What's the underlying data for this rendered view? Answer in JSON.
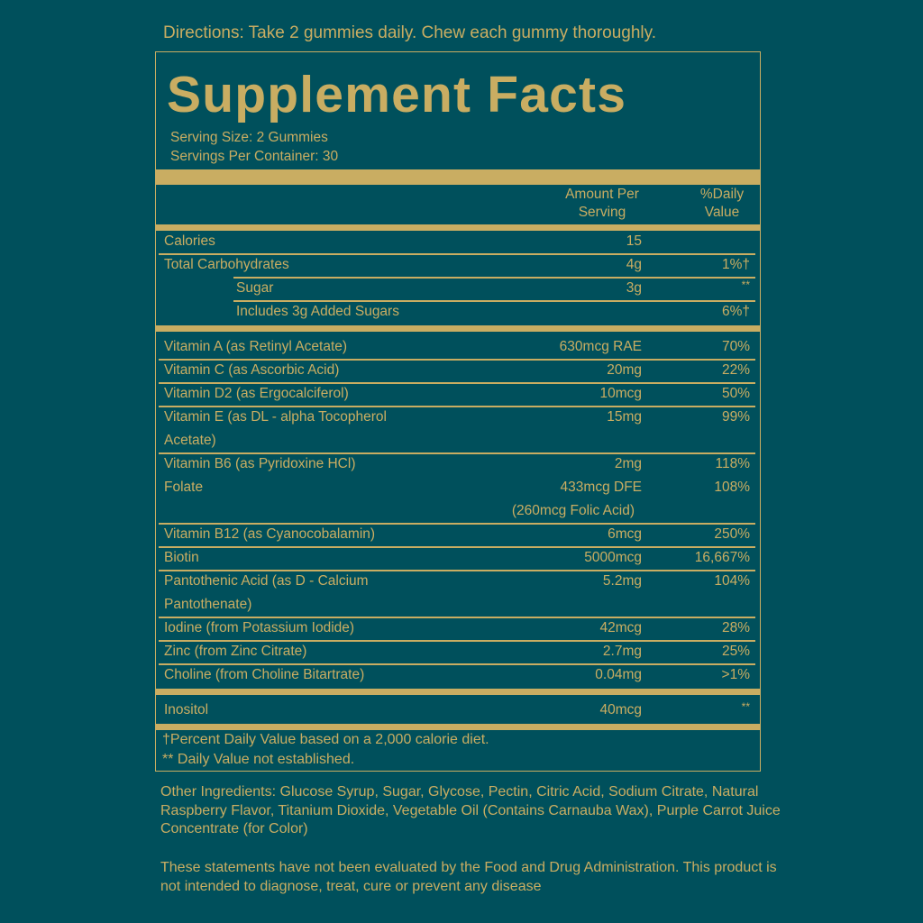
{
  "directions": "Directions: Take 2 gummies daily. Chew each gummy thoroughly.",
  "title": "Supplement Facts",
  "serving_size": "Serving Size: 2 Gummies",
  "servings_per_container": "Servings Per Container: 30",
  "header": {
    "amount": "Amount Per Serving",
    "amount_l1": "Amount Per",
    "amount_l2": "Serving",
    "dv_l1": "%Daily",
    "dv_l2": "Value"
  },
  "rows": [
    {
      "name": [
        "Calories"
      ],
      "amount": [
        "15"
      ],
      "dv": "",
      "after": "thin"
    },
    {
      "name": [
        "Total Carbohydrates"
      ],
      "amount": [
        "4g"
      ],
      "dv": "1%†",
      "after": "thin-indent"
    },
    {
      "name": [
        "Sugar"
      ],
      "indent": true,
      "amount": [
        "3g"
      ],
      "dv": "**",
      "after": "thin-indent"
    },
    {
      "name": [
        "Includes 3g Added Sugars"
      ],
      "indent": true,
      "amount": [
        ""
      ],
      "dv": "6%†",
      "after": "thick"
    },
    {
      "name": [
        "Vitamin A (as Retinyl Acetate)"
      ],
      "amount": [
        "630mcg RAE"
      ],
      "dv": "70%",
      "after": "thin"
    },
    {
      "name": [
        "Vitamin C (as Ascorbic Acid)"
      ],
      "amount": [
        "20mg"
      ],
      "dv": "22%",
      "after": "thin"
    },
    {
      "name": [
        "Vitamin D2 (as Ergocalciferol)"
      ],
      "amount": [
        "10mcg"
      ],
      "dv": "50%",
      "after": "thin"
    },
    {
      "name": [
        "Vitamin E (as DL - alpha Tocopherol",
        "Acetate)"
      ],
      "amount": [
        "15mg"
      ],
      "dv": "99%",
      "after": "thin"
    },
    {
      "name": [
        "Vitamin B6 (as Pyridoxine HCl)"
      ],
      "amount": [
        "2mg"
      ],
      "dv": "118%",
      "after": "none"
    },
    {
      "name": [
        "Folate"
      ],
      "amount": [
        "433mcg DFE",
        "(260mcg Folic Acid)"
      ],
      "dv": "108%",
      "after": "thin"
    },
    {
      "name": [
        "Vitamin B12 (as Cyanocobalamin)"
      ],
      "amount": [
        "6mcg"
      ],
      "dv": "250%",
      "after": "thin"
    },
    {
      "name": [
        "Biotin"
      ],
      "amount": [
        "5000mcg"
      ],
      "dv": "16,667%",
      "after": "thin"
    },
    {
      "name": [
        "Pantothenic Acid (as D - Calcium",
        "Pantothenate)"
      ],
      "amount": [
        "5.2mg"
      ],
      "dv": "104%",
      "after": "thin"
    },
    {
      "name": [
        "Iodine (from Potassium Iodide)"
      ],
      "amount": [
        "42mcg"
      ],
      "dv": "28%",
      "after": "thin"
    },
    {
      "name": [
        "Zinc (from Zinc Citrate)"
      ],
      "amount": [
        "2.7mg"
      ],
      "dv": "25%",
      "after": "thin"
    },
    {
      "name": [
        "Choline (from Choline Bitartrate)"
      ],
      "amount": [
        "0.04mg"
      ],
      "dv": ">1%",
      "after": "thick"
    },
    {
      "name": [
        "Inositol"
      ],
      "amount": [
        "40mcg"
      ],
      "dv": "**",
      "after": "thick"
    }
  ],
  "footnotes": [
    "†Percent Daily Value based on a 2,000 calorie diet.",
    "** Daily Value not established."
  ],
  "other_ingredients": "Other Ingredients: Glucose Syrup, Sugar, Glycose, Pectin, Citric Acid, Sodium Citrate, Natural Raspberry Flavor, Titanium Dioxide, Vegetable Oil (Contains Carnauba Wax), Purple Carrot Juice Concentrate (for Color)",
  "disclaimer": "These statements have not been evaluated by the Food and Drug Administration. This product is not intended to diagnose, treat, cure or prevent any disease",
  "colors": {
    "background": "#00505c",
    "gold": "#c9ad62"
  }
}
